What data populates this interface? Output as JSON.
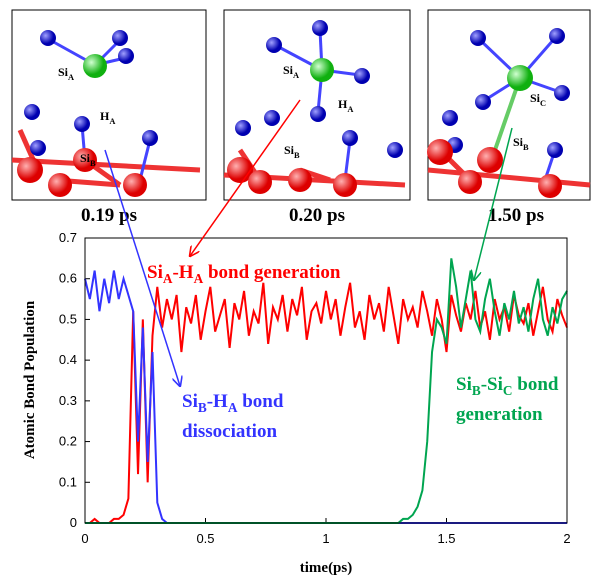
{
  "chart_data": {
    "type": "line",
    "ylabel": "Atomic Bond Population",
    "xlabel": "time(ps)",
    "xlim": [
      0,
      2
    ],
    "xticks": [
      0,
      0.5,
      1,
      1.5,
      2
    ],
    "ylim": [
      0,
      0.7
    ],
    "yticks": [
      0,
      0.1,
      0.2,
      0.3,
      0.4,
      0.5,
      0.6,
      0.7
    ],
    "x": [
      0,
      0.02,
      0.04,
      0.06,
      0.08,
      0.1,
      0.12,
      0.14,
      0.16,
      0.18,
      0.2,
      0.22,
      0.24,
      0.26,
      0.28,
      0.3,
      0.32,
      0.34,
      0.36,
      0.38,
      0.4,
      0.42,
      0.44,
      0.46,
      0.48,
      0.5,
      0.52,
      0.54,
      0.56,
      0.58,
      0.6,
      0.62,
      0.64,
      0.66,
      0.68,
      0.7,
      0.72,
      0.74,
      0.76,
      0.78,
      0.8,
      0.82,
      0.84,
      0.86,
      0.88,
      0.9,
      0.92,
      0.94,
      0.96,
      0.98,
      1,
      1.02,
      1.04,
      1.06,
      1.08,
      1.1,
      1.12,
      1.14,
      1.16,
      1.18,
      1.2,
      1.22,
      1.24,
      1.26,
      1.28,
      1.3,
      1.32,
      1.34,
      1.36,
      1.38,
      1.4,
      1.42,
      1.44,
      1.46,
      1.48,
      1.5,
      1.52,
      1.54,
      1.56,
      1.58,
      1.6,
      1.62,
      1.64,
      1.66,
      1.68,
      1.7,
      1.72,
      1.74,
      1.76,
      1.78,
      1.8,
      1.82,
      1.84,
      1.86,
      1.88,
      1.9,
      1.92,
      1.94,
      1.96,
      1.98,
      2
    ],
    "series": [
      {
        "color": "#ff0000",
        "values": [
          0,
          0,
          0.01,
          0,
          0,
          0,
          0.01,
          0.01,
          0.02,
          0.06,
          0.52,
          0.12,
          0.5,
          0.1,
          0.46,
          0.58,
          0.48,
          0.55,
          0.5,
          0.56,
          0.42,
          0.53,
          0.49,
          0.56,
          0.45,
          0.52,
          0.58,
          0.47,
          0.51,
          0.55,
          0.43,
          0.54,
          0.5,
          0.57,
          0.46,
          0.52,
          0.49,
          0.59,
          0.44,
          0.53,
          0.5,
          0.56,
          0.47,
          0.55,
          0.51,
          0.58,
          0.45,
          0.52,
          0.54,
          0.49,
          0.57,
          0.5,
          0.55,
          0.46,
          0.53,
          0.59,
          0.48,
          0.52,
          0.45,
          0.56,
          0.5,
          0.54,
          0.47,
          0.58,
          0.51,
          0.44,
          0.55,
          0.5,
          0.53,
          0.48,
          0.57,
          0.52,
          0.46,
          0.55,
          0.5,
          0.42,
          0.56,
          0.51,
          0.47,
          0.54,
          0.5,
          0.57,
          0.48,
          0.52,
          0.45,
          0.55,
          0.5,
          0.53,
          0.47,
          0.56,
          0.51,
          0.49,
          0.54,
          0.46,
          0.52,
          0.58,
          0.5,
          0.47,
          0.55,
          0.51,
          0.48
        ]
      },
      {
        "color": "#3333ff",
        "values": [
          0.6,
          0.55,
          0.62,
          0.52,
          0.6,
          0.54,
          0.62,
          0.55,
          0.6,
          0.56,
          0.52,
          0.2,
          0.48,
          0.15,
          0.42,
          0.05,
          0.01,
          0,
          0,
          0,
          0,
          0,
          0,
          0,
          0,
          0,
          0,
          0,
          0,
          0,
          0,
          0,
          0,
          0,
          0,
          0,
          0,
          0,
          0,
          0,
          0,
          0,
          0,
          0,
          0,
          0,
          0,
          0,
          0,
          0,
          0,
          0,
          0,
          0,
          0,
          0,
          0,
          0,
          0,
          0,
          0,
          0,
          0,
          0,
          0,
          0,
          0,
          0,
          0,
          0,
          0,
          0,
          0,
          0,
          0,
          0,
          0,
          0,
          0,
          0,
          0,
          0,
          0,
          0,
          0,
          0,
          0,
          0,
          0,
          0,
          0,
          0,
          0,
          0,
          0,
          0,
          0,
          0,
          0,
          0,
          0
        ]
      },
      {
        "color": "#00a550",
        "values": [
          0,
          0,
          0,
          0,
          0,
          0,
          0,
          0,
          0,
          0,
          0,
          0,
          0,
          0,
          0,
          0,
          0,
          0,
          0,
          0,
          0,
          0,
          0,
          0,
          0,
          0,
          0,
          0,
          0,
          0,
          0,
          0,
          0,
          0,
          0,
          0,
          0,
          0,
          0,
          0,
          0,
          0,
          0,
          0,
          0,
          0,
          0,
          0,
          0,
          0,
          0,
          0,
          0,
          0,
          0,
          0,
          0,
          0,
          0,
          0,
          0,
          0,
          0,
          0,
          0,
          0,
          0.01,
          0.01,
          0.02,
          0.04,
          0.08,
          0.2,
          0.42,
          0.5,
          0.48,
          0.44,
          0.65,
          0.58,
          0.48,
          0.55,
          0.62,
          0.5,
          0.47,
          0.55,
          0.6,
          0.52,
          0.46,
          0.54,
          0.5,
          0.57,
          0.49,
          0.53,
          0.47,
          0.55,
          0.6,
          0.5,
          0.46,
          0.53,
          0.49,
          0.55,
          0.57
        ]
      }
    ],
    "annotations": [
      [
        "Si",
        "A",
        "-H",
        "A",
        " bond generation"
      ],
      [
        "Si",
        "B",
        "-H",
        "A",
        " bond"
      ],
      [
        "dissociation"
      ],
      [
        "Si",
        "B",
        "-Si",
        "C",
        " bond"
      ],
      [
        "generation"
      ]
    ],
    "panels": [
      {
        "time": "0.19 ps",
        "labels": [
          [
            "Si",
            "A"
          ],
          [
            "H",
            "A"
          ],
          [
            "Si",
            "B"
          ]
        ]
      },
      {
        "time": "0.20 ps",
        "labels": [
          [
            "Si",
            "A"
          ],
          [
            "H",
            "A"
          ],
          [
            "Si",
            "B"
          ]
        ]
      },
      {
        "time": "1.50 ps",
        "labels": [
          [
            "Si",
            "C"
          ],
          [
            "Si",
            "B"
          ]
        ]
      }
    ]
  }
}
